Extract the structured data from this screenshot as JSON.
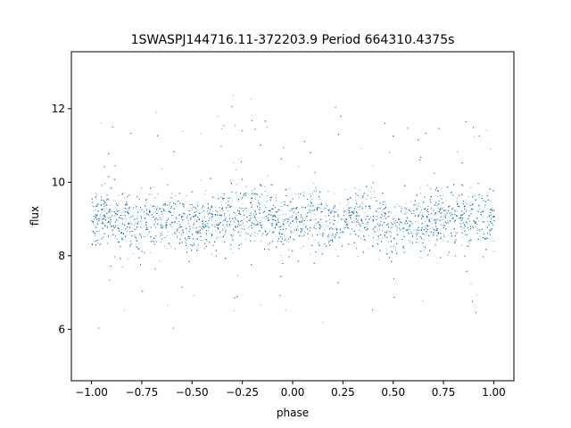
{
  "chart_data": {
    "type": "scatter",
    "title": "1SWASPJ144716.11-372203.9 Period 664310.4375s",
    "xlabel": "phase",
    "ylabel": "flux",
    "xlim": [
      -1.1,
      1.1
    ],
    "ylim": [
      4.6,
      13.55
    ],
    "xticks": [
      -1.0,
      -0.75,
      -0.5,
      -0.25,
      0.0,
      0.25,
      0.5,
      0.75,
      1.0
    ],
    "xtick_labels": [
      "−1.00",
      "−0.75",
      "−0.50",
      "−0.25",
      "0.00",
      "0.25",
      "0.50",
      "0.75",
      "1.00"
    ],
    "yticks": [
      6,
      8,
      10,
      12
    ],
    "ytick_labels": [
      "6",
      "8",
      "10",
      "12"
    ],
    "grid": false,
    "legend": "none",
    "marker_color": "#1f77b4",
    "series": [
      {
        "description_points": "dense light-curve cloud, phase -1 to 1, flux mostly 7.8-10.2 centered near 9.0, sparse outliers 5-13.2",
        "x": [
          -1.0,
          -0.97,
          -0.93,
          -0.88,
          -0.82,
          -0.76,
          -0.71,
          -0.66,
          -0.61,
          -0.56,
          -0.5,
          -0.45,
          -0.4,
          -0.35,
          -0.3,
          -0.25,
          -0.2,
          -0.15,
          -0.1,
          -0.05,
          0.0,
          0.05,
          0.1,
          0.15,
          0.2,
          0.25,
          0.3,
          0.35,
          0.4,
          0.45,
          0.5,
          0.55,
          0.6,
          0.65,
          0.7,
          0.75,
          0.8,
          0.85,
          0.9,
          0.95,
          1.0
        ],
        "y": [
          9.0,
          9.1,
          9.2,
          8.9,
          9.0,
          8.8,
          9.1,
          8.9,
          9.0,
          8.8,
          8.9,
          8.9,
          8.8,
          9.0,
          9.0,
          9.1,
          9.2,
          9.0,
          9.1,
          8.9,
          8.9,
          9.0,
          9.1,
          8.9,
          8.8,
          9.0,
          9.1,
          9.1,
          9.0,
          8.9,
          8.7,
          8.8,
          9.0,
          8.9,
          9.1,
          9.0,
          9.2,
          9.1,
          9.0,
          9.0,
          9.0
        ]
      }
    ]
  }
}
